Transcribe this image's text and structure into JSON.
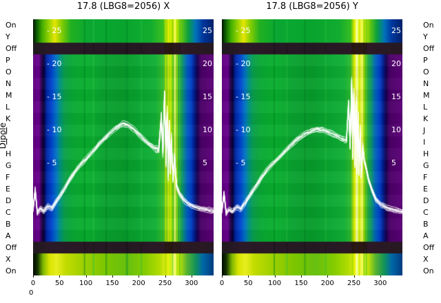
{
  "figure": {
    "y_axis_title": "Dipole",
    "row_labels": [
      "On",
      "Y",
      "Off",
      "P",
      "O",
      "N",
      "M",
      "L",
      "K",
      "J",
      "I",
      "H",
      "G",
      "F",
      "E",
      "D",
      "C",
      "B",
      "A",
      "Off",
      "X",
      "On"
    ],
    "stray_tick": "0"
  },
  "colors": {
    "line_color": "#ffffff",
    "label_color": "#000000",
    "inner_label_color": "#ffffff",
    "main_stops": [
      [
        0,
        "#60007e"
      ],
      [
        0.033,
        "#6a0090"
      ],
      [
        0.045,
        "#30004e"
      ],
      [
        0.06,
        "#050038"
      ],
      [
        0.075,
        "#0026a6"
      ],
      [
        0.105,
        "#0048d0"
      ],
      [
        0.13,
        "#0077c0"
      ],
      [
        0.15,
        "#00927e"
      ],
      [
        0.175,
        "#0aa04a"
      ],
      [
        0.22,
        "#0aaa34"
      ],
      [
        0.3,
        "#09b02e"
      ],
      [
        0.4,
        "#0aa230"
      ],
      [
        0.5,
        "#089c2c"
      ],
      [
        0.6,
        "#0aa832"
      ],
      [
        0.68,
        "#12b036"
      ],
      [
        0.72,
        "#38bc2c"
      ],
      [
        0.74,
        "#52c428"
      ],
      [
        0.8,
        "#2ab43a"
      ],
      [
        0.825,
        "#0f9a60"
      ],
      [
        0.85,
        "#0063bc"
      ],
      [
        0.875,
        "#0040c8"
      ],
      [
        0.895,
        "#001a86"
      ],
      [
        0.91,
        "#16004e"
      ],
      [
        0.93,
        "#4c0068"
      ],
      [
        1,
        "#5c0078"
      ]
    ],
    "top_stops": [
      [
        0,
        "#041400"
      ],
      [
        0.02,
        "#0c5c00"
      ],
      [
        0.05,
        "#42ae00"
      ],
      [
        0.09,
        "#9ad400"
      ],
      [
        0.12,
        "#e6e600"
      ],
      [
        0.155,
        "#8cd000"
      ],
      [
        0.21,
        "#22b020"
      ],
      [
        0.3,
        "#0aa832"
      ],
      [
        0.5,
        "#08a42e"
      ],
      [
        0.65,
        "#12ac30"
      ],
      [
        0.72,
        "#3cc020"
      ],
      [
        0.755,
        "#c8e400"
      ],
      [
        0.79,
        "#e8f000"
      ],
      [
        0.82,
        "#66c810"
      ],
      [
        0.86,
        "#0a9e40"
      ],
      [
        0.9,
        "#0072ba"
      ],
      [
        0.94,
        "#0038a0"
      ],
      [
        1,
        "#002068"
      ]
    ],
    "bottom_stops": [
      [
        0,
        "#020a00"
      ],
      [
        0.025,
        "#143200"
      ],
      [
        0.055,
        "#7cb600"
      ],
      [
        0.09,
        "#d8e400"
      ],
      [
        0.13,
        "#e8ee20"
      ],
      [
        0.18,
        "#c2dc00"
      ],
      [
        0.28,
        "#9ed000"
      ],
      [
        0.4,
        "#7cc600"
      ],
      [
        0.52,
        "#68c010"
      ],
      [
        0.62,
        "#84cc00"
      ],
      [
        0.7,
        "#b2dc00"
      ],
      [
        0.745,
        "#e8f020"
      ],
      [
        0.775,
        "#fbffc0"
      ],
      [
        0.805,
        "#d0ea00"
      ],
      [
        0.85,
        "#5ab430"
      ],
      [
        0.9,
        "#12925a"
      ],
      [
        0.94,
        "#0068a8"
      ],
      [
        1,
        "#003c80"
      ]
    ],
    "off_stops": [
      [
        0,
        "#070007"
      ],
      [
        0.1,
        "#140010"
      ],
      [
        0.5,
        "#0c000a"
      ],
      [
        0.8,
        "#16000e"
      ],
      [
        1,
        "#0e000a"
      ]
    ]
  },
  "chart_data": [
    {
      "type": "heatmap",
      "title": "17.8 (LBG8=2056) X",
      "x_ticks": [
        0,
        50,
        100,
        150,
        200,
        250,
        300
      ],
      "x_max": 342,
      "y_row_labels": [
        "On",
        "Y",
        "Off",
        "P",
        "O",
        "N",
        "M",
        "L",
        "K",
        "J",
        "I",
        "H",
        "G",
        "F",
        "E",
        "D",
        "C",
        "B",
        "A",
        "Off",
        "X",
        "On"
      ],
      "inner_y_ticks": [
        25,
        20,
        15,
        10,
        5
      ],
      "stripes": [
        {
          "pos": 0.285,
          "w": 2,
          "color": "#007c20",
          "alpha": 0.45
        },
        {
          "pos": 0.335,
          "w": 2,
          "color": "#2fc040",
          "alpha": 0.5
        },
        {
          "pos": 0.405,
          "w": 2,
          "color": "#007c20",
          "alpha": 0.45
        },
        {
          "pos": 0.52,
          "w": 3,
          "color": "#008a26",
          "alpha": 0.4
        },
        {
          "pos": 0.6,
          "w": 2,
          "color": "#2fc040",
          "alpha": 0.45
        },
        {
          "pos": 0.735,
          "w": 3,
          "color": "#b8e000",
          "alpha": 0.8
        },
        {
          "pos": 0.748,
          "w": 2,
          "color": "#e8f000",
          "alpha": 0.9
        },
        {
          "pos": 0.761,
          "w": 4,
          "color": "#caee00",
          "alpha": 0.9
        },
        {
          "pos": 0.773,
          "w": 2,
          "color": "#7fd400",
          "alpha": 0.85
        },
        {
          "pos": 0.786,
          "w": 3,
          "color": "#f2f860",
          "alpha": 0.92
        },
        {
          "pos": 0.798,
          "w": 2,
          "color": "#9fe000",
          "alpha": 0.8
        },
        {
          "pos": 0.812,
          "w": 2,
          "color": "#50c020",
          "alpha": 0.6
        }
      ],
      "overlay_line": {
        "bundle_offsets": [
          -3.5,
          -2,
          -0.8,
          0,
          0.8,
          2,
          3.5
        ],
        "x": [
          0,
          4,
          8,
          14,
          20,
          28,
          36,
          44,
          52,
          60,
          70,
          80,
          90,
          100,
          110,
          120,
          130,
          140,
          150,
          160,
          170,
          180,
          190,
          200,
          210,
          220,
          230,
          238,
          243,
          246,
          249,
          252,
          254,
          256,
          258,
          260,
          262,
          265,
          268,
          272,
          278,
          285,
          295,
          305,
          315,
          325,
          342
        ],
        "v": [
          -2,
          1,
          -2.5,
          -1.8,
          -2.2,
          -1.5,
          -1.8,
          -0.8,
          0.2,
          1.2,
          2.6,
          3.8,
          4.8,
          5.6,
          6.5,
          7.4,
          8.3,
          9.1,
          9.9,
          10.5,
          11,
          10.8,
          10.2,
          9.4,
          8.6,
          7.9,
          7.3,
          7,
          12,
          6.5,
          15.5,
          5,
          13,
          3,
          11,
          4,
          9,
          2.5,
          6,
          1.5,
          0.3,
          -0.5,
          -1.2,
          -1.6,
          -1.8,
          -2,
          -2.2
        ]
      }
    },
    {
      "type": "heatmap",
      "title": "17.8 (LBG8=2056) Y",
      "x_ticks": [
        0,
        50,
        100,
        150,
        200,
        250,
        300
      ],
      "x_max": 342,
      "y_row_labels": [
        "On",
        "Y",
        "Off",
        "P",
        "O",
        "N",
        "M",
        "L",
        "K",
        "J",
        "I",
        "H",
        "G",
        "F",
        "E",
        "D",
        "C",
        "B",
        "A",
        "Off",
        "X",
        "On"
      ],
      "inner_y_ticks": [
        25,
        20,
        15,
        10,
        5
      ],
      "stripes": [
        {
          "pos": 0.29,
          "w": 2,
          "color": "#007c20",
          "alpha": 0.45
        },
        {
          "pos": 0.36,
          "w": 2,
          "color": "#2fc040",
          "alpha": 0.45
        },
        {
          "pos": 0.46,
          "w": 2,
          "color": "#007c20",
          "alpha": 0.4
        },
        {
          "pos": 0.575,
          "w": 2,
          "color": "#2fc040",
          "alpha": 0.4
        },
        {
          "pos": 0.724,
          "w": 3,
          "color": "#a8d800",
          "alpha": 0.75
        },
        {
          "pos": 0.737,
          "w": 4,
          "color": "#e8f000",
          "alpha": 0.92
        },
        {
          "pos": 0.75,
          "w": 5,
          "color": "#f6ff90",
          "alpha": 0.95
        },
        {
          "pos": 0.763,
          "w": 4,
          "color": "#d8ee00",
          "alpha": 0.92
        },
        {
          "pos": 0.776,
          "w": 5,
          "color": "#f0f850",
          "alpha": 0.95
        },
        {
          "pos": 0.789,
          "w": 3,
          "color": "#90d800",
          "alpha": 0.85
        },
        {
          "pos": 0.801,
          "w": 2,
          "color": "#60c820",
          "alpha": 0.7
        }
      ],
      "overlay_line": {
        "bundle_offsets": [
          -3.5,
          -2,
          -0.8,
          0,
          0.8,
          2,
          3.5
        ],
        "x": [
          0,
          4,
          8,
          14,
          20,
          28,
          36,
          44,
          52,
          60,
          70,
          80,
          90,
          100,
          110,
          120,
          130,
          140,
          150,
          160,
          170,
          180,
          190,
          200,
          210,
          220,
          230,
          236,
          240,
          243,
          246,
          248,
          250,
          252,
          254,
          256,
          258,
          260,
          262,
          264,
          267,
          270,
          274,
          278,
          284,
          292,
          302,
          312,
          322,
          342
        ],
        "v": [
          -2.2,
          0.5,
          -2.5,
          -2,
          -2.3,
          -1.6,
          -1.9,
          -1,
          0,
          1,
          2.2,
          3.4,
          4.4,
          5.2,
          6,
          6.8,
          7.6,
          8.4,
          9,
          9.5,
          9.9,
          10.1,
          10.1,
          9.8,
          9.4,
          9,
          8.6,
          8.4,
          14,
          7.5,
          17.5,
          6,
          16,
          5,
          14.5,
          4,
          12.5,
          3.5,
          10,
          3,
          7.5,
          5.5,
          4,
          2.5,
          1,
          -0.5,
          -1.3,
          -1.7,
          -2,
          -2.3
        ]
      }
    }
  ]
}
